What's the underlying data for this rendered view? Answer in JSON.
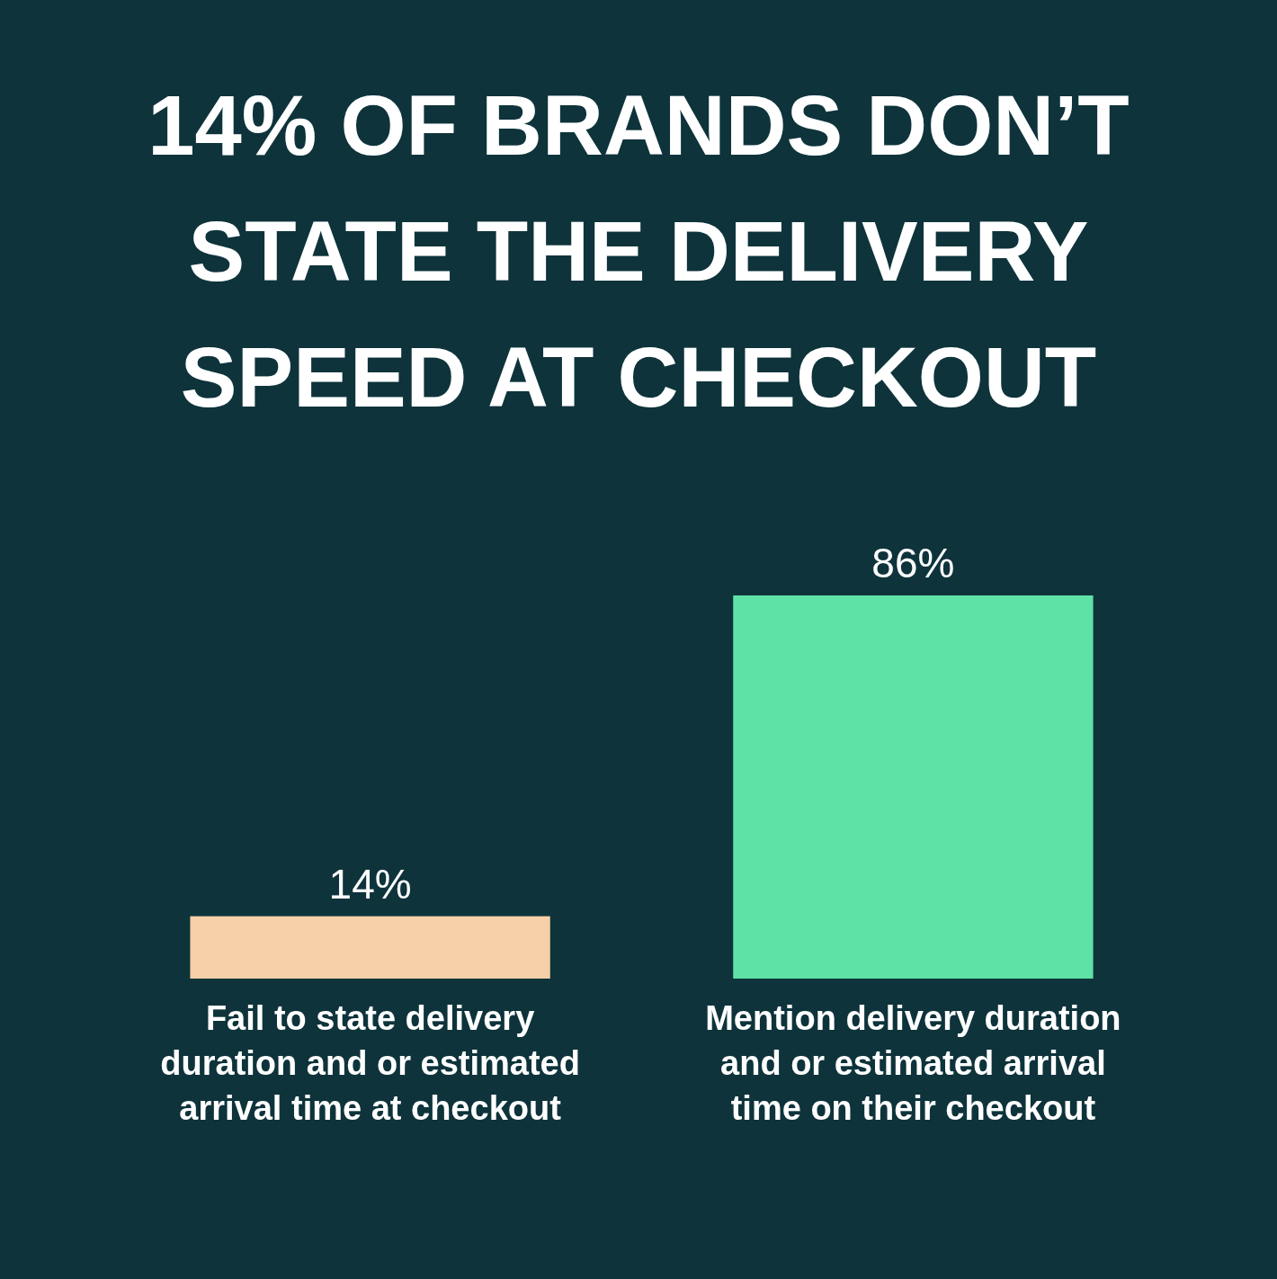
{
  "chart_data": {
    "type": "bar",
    "title": "14% OF BRANDS DON’T STATE THE DELIVERY SPEED AT CHECKOUT",
    "categories": [
      "Fail to state delivery duration and or estimated arrival time at checkout",
      "Mention delivery duration and or estimated arrival time on their checkout"
    ],
    "values": [
      14,
      86
    ],
    "value_labels": [
      "14%",
      "86%"
    ],
    "colors": [
      "#f5d0a8",
      "#5fe2a6"
    ]
  }
}
